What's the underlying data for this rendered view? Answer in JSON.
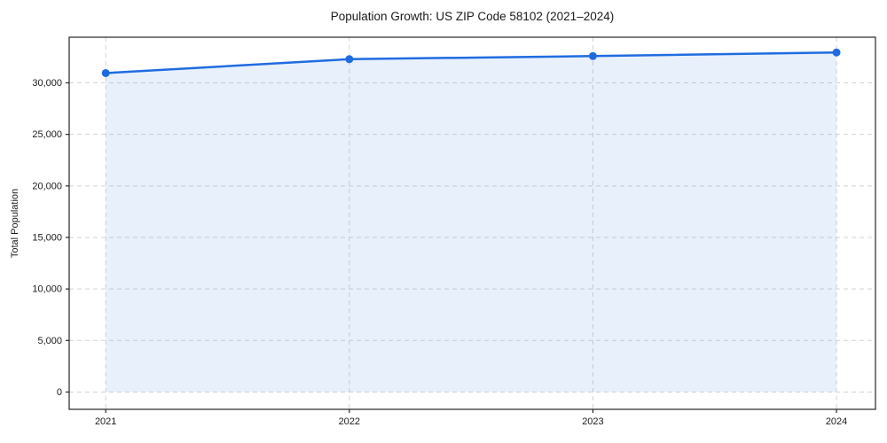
{
  "chart_data": {
    "type": "area",
    "title": "Population Growth: US ZIP Code 58102 (2021–2024)",
    "xlabel": "",
    "ylabel": "Total Population",
    "x": [
      "2021",
      "2022",
      "2023",
      "2024"
    ],
    "series": [
      {
        "name": "Total Population",
        "values": [
          30950,
          32300,
          32600,
          32950
        ]
      }
    ],
    "yticks": [
      0,
      5000,
      10000,
      15000,
      20000,
      25000,
      30000
    ],
    "xlim": [
      2020.85,
      2024.16
    ],
    "ylim": [
      -1680,
      34430
    ],
    "fill_baseline": 0,
    "grid": true,
    "grid_style": "dashed",
    "legend": "none",
    "line_color": "#1f6ce0",
    "fill_color": "#1f6ce0",
    "fill_opacity": 0.1,
    "spine_color": "#262626",
    "text_color": "#1a1a1a"
  }
}
